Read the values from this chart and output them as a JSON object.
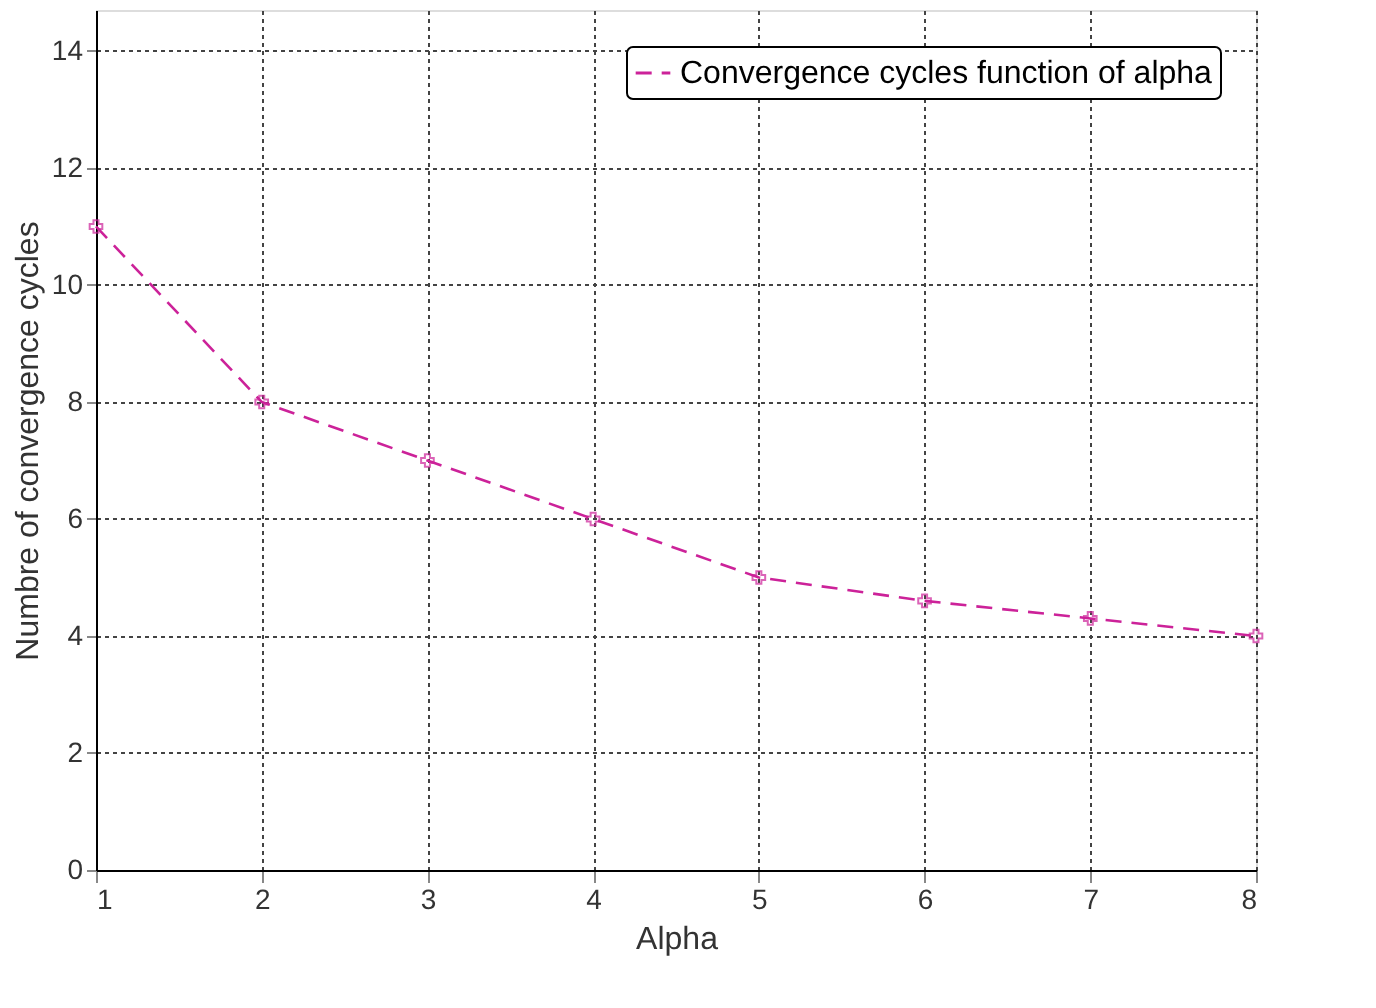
{
  "chart_data": {
    "type": "line",
    "xlabel": "Alpha",
    "ylabel": "Numbre of convergence cycles",
    "x": [
      1,
      2,
      3,
      4,
      5,
      6,
      7,
      8
    ],
    "series": [
      {
        "name": "Convergence cycles function of alpha",
        "color": "#cc2299",
        "values": [
          11,
          8,
          7,
          6,
          5,
          4.6,
          4.3,
          4
        ]
      }
    ],
    "xlim": [
      1,
      8
    ],
    "xticks": [
      1,
      2,
      3,
      4,
      5,
      6,
      7,
      8
    ],
    "ylim": [
      0,
      14.7
    ],
    "yticks": [
      0,
      2,
      4,
      6,
      8,
      10,
      12,
      14
    ],
    "grid": true,
    "legend": "top right",
    "marker": "cross",
    "line_style": "dashed"
  }
}
